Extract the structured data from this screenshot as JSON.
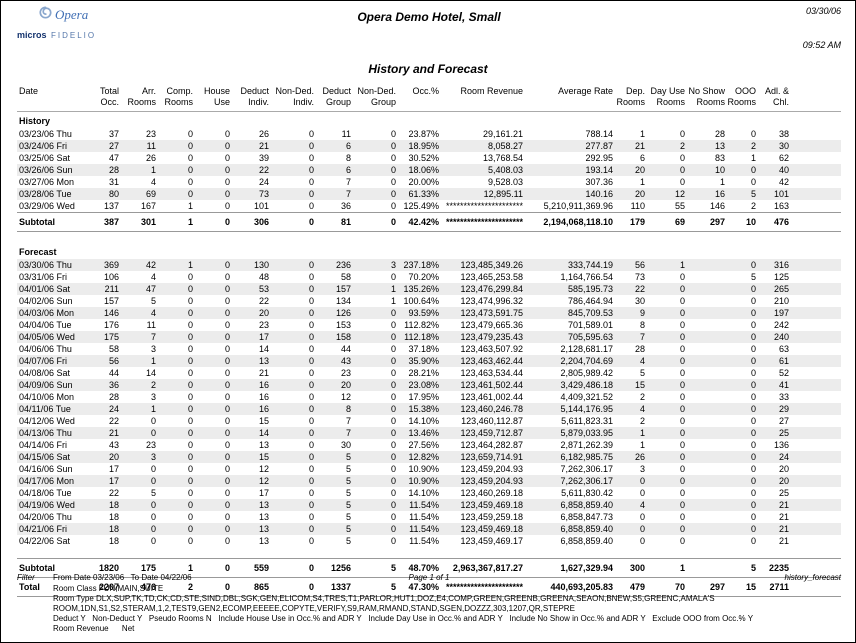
{
  "meta": {
    "logo": {
      "brand": "Opera",
      "sub_brand_1": "micros",
      "sub_brand_2": "FIDELIO"
    },
    "hotel_title": "Opera Demo Hotel, Small",
    "date": "03/30/06",
    "time": "09:52 AM",
    "report_title": "History and Forecast"
  },
  "table": {
    "columns": [
      {
        "lines": [
          "Date"
        ]
      },
      {
        "lines": [
          "Total",
          "Occ."
        ]
      },
      {
        "lines": [
          "Arr.",
          "Rooms"
        ]
      },
      {
        "lines": [
          "Comp.",
          "Rooms"
        ]
      },
      {
        "lines": [
          "House",
          "Use"
        ]
      },
      {
        "lines": [
          "Deduct",
          "Indiv."
        ]
      },
      {
        "lines": [
          "Non-Ded.",
          "Indiv."
        ]
      },
      {
        "lines": [
          "Deduct",
          "Group"
        ]
      },
      {
        "lines": [
          "Non-Ded.",
          "Group"
        ]
      },
      {
        "lines": [
          "Occ.%"
        ]
      },
      {
        "lines": [
          "Room Revenue"
        ]
      },
      {
        "lines": [
          "Average Rate"
        ]
      },
      {
        "lines": [
          "Dep.",
          "Rooms"
        ]
      },
      {
        "lines": [
          "Day Use",
          "Rooms"
        ]
      },
      {
        "lines": [
          "No Show",
          "Rooms"
        ]
      },
      {
        "lines": [
          "OOO",
          "Rooms"
        ]
      },
      {
        "lines": [
          "Adl. &",
          "Chl."
        ]
      }
    ],
    "sections": [
      {
        "label": "History",
        "rows": [
          [
            "03/23/06 Thu",
            "37",
            "23",
            "0",
            "0",
            "26",
            "0",
            "11",
            "0",
            "23.87%",
            "29,161.21",
            "788.14",
            "1",
            "0",
            "28",
            "0",
            "38"
          ],
          [
            "03/24/06 Fri",
            "27",
            "11",
            "0",
            "0",
            "21",
            "0",
            "6",
            "0",
            "18.95%",
            "8,058.27",
            "277.87",
            "21",
            "2",
            "13",
            "2",
            "30"
          ],
          [
            "03/25/06 Sat",
            "47",
            "26",
            "0",
            "0",
            "39",
            "0",
            "8",
            "0",
            "30.52%",
            "13,768.54",
            "292.95",
            "6",
            "0",
            "83",
            "1",
            "62"
          ],
          [
            "03/26/06 Sun",
            "28",
            "1",
            "0",
            "0",
            "22",
            "0",
            "6",
            "0",
            "18.06%",
            "5,408.03",
            "193.14",
            "20",
            "0",
            "10",
            "0",
            "40"
          ],
          [
            "03/27/06 Mon",
            "31",
            "4",
            "0",
            "0",
            "24",
            "0",
            "7",
            "0",
            "20.00%",
            "9,528.03",
            "307.36",
            "1",
            "0",
            "1",
            "0",
            "42"
          ],
          [
            "03/28/06 Tue",
            "80",
            "69",
            "0",
            "0",
            "73",
            "0",
            "7",
            "0",
            "61.33%",
            "12,895.11",
            "140.16",
            "20",
            "12",
            "16",
            "5",
            "101"
          ],
          [
            "03/29/06 Wed",
            "137",
            "167",
            "1",
            "0",
            "101",
            "0",
            "36",
            "0",
            "125.49%",
            "**********************",
            "5,210,911,369.96",
            "110",
            "55",
            "146",
            "2",
            "163"
          ]
        ],
        "subtotal": [
          "Subtotal",
          "387",
          "301",
          "1",
          "0",
          "306",
          "0",
          "81",
          "0",
          "42.42%",
          "**********************",
          "2,194,068,118.10",
          "179",
          "69",
          "297",
          "10",
          "476"
        ]
      },
      {
        "label": "Forecast",
        "rows": [
          [
            "03/30/06 Thu",
            "369",
            "42",
            "1",
            "0",
            "130",
            "0",
            "236",
            "3",
            "237.18%",
            "123,485,349.26",
            "333,744.19",
            "56",
            "1",
            "",
            "0",
            "316"
          ],
          [
            "03/31/06 Fri",
            "106",
            "4",
            "0",
            "0",
            "48",
            "0",
            "58",
            "0",
            "70.20%",
            "123,465,253.58",
            "1,164,766.54",
            "73",
            "0",
            "",
            "5",
            "125"
          ],
          [
            "04/01/06 Sat",
            "211",
            "47",
            "0",
            "0",
            "53",
            "0",
            "157",
            "1",
            "135.26%",
            "123,476,299.84",
            "585,195.73",
            "22",
            "0",
            "",
            "0",
            "265"
          ],
          [
            "04/02/06 Sun",
            "157",
            "5",
            "0",
            "0",
            "22",
            "0",
            "134",
            "1",
            "100.64%",
            "123,474,996.32",
            "786,464.94",
            "30",
            "0",
            "",
            "0",
            "210"
          ],
          [
            "04/03/06 Mon",
            "146",
            "4",
            "0",
            "0",
            "20",
            "0",
            "126",
            "0",
            "93.59%",
            "123,473,591.75",
            "845,709.53",
            "9",
            "0",
            "",
            "0",
            "197"
          ],
          [
            "04/04/06 Tue",
            "176",
            "11",
            "0",
            "0",
            "23",
            "0",
            "153",
            "0",
            "112.82%",
            "123,479,665.36",
            "701,589.01",
            "8",
            "0",
            "",
            "0",
            "242"
          ],
          [
            "04/05/06 Wed",
            "175",
            "7",
            "0",
            "0",
            "17",
            "0",
            "158",
            "0",
            "112.18%",
            "123,479,235.43",
            "705,595.63",
            "7",
            "0",
            "",
            "0",
            "240"
          ],
          [
            "04/06/06 Thu",
            "58",
            "3",
            "0",
            "0",
            "14",
            "0",
            "44",
            "0",
            "37.18%",
            "123,463,507.92",
            "2,128,681.17",
            "28",
            "0",
            "",
            "0",
            "63"
          ],
          [
            "04/07/06 Fri",
            "56",
            "1",
            "0",
            "0",
            "13",
            "0",
            "43",
            "0",
            "35.90%",
            "123,463,462.44",
            "2,204,704.69",
            "4",
            "0",
            "",
            "0",
            "61"
          ],
          [
            "04/08/06 Sat",
            "44",
            "14",
            "0",
            "0",
            "21",
            "0",
            "23",
            "0",
            "28.21%",
            "123,463,534.44",
            "2,805,989.42",
            "5",
            "0",
            "",
            "0",
            "52"
          ],
          [
            "04/09/06 Sun",
            "36",
            "2",
            "0",
            "0",
            "16",
            "0",
            "20",
            "0",
            "23.08%",
            "123,461,502.44",
            "3,429,486.18",
            "15",
            "0",
            "",
            "0",
            "41"
          ],
          [
            "04/10/06 Mon",
            "28",
            "3",
            "0",
            "0",
            "16",
            "0",
            "12",
            "0",
            "17.95%",
            "123,461,002.44",
            "4,409,321.52",
            "2",
            "0",
            "",
            "0",
            "33"
          ],
          [
            "04/11/06 Tue",
            "24",
            "1",
            "0",
            "0",
            "16",
            "0",
            "8",
            "0",
            "15.38%",
            "123,460,246.78",
            "5,144,176.95",
            "4",
            "0",
            "",
            "0",
            "29"
          ],
          [
            "04/12/06 Wed",
            "22",
            "0",
            "0",
            "0",
            "15",
            "0",
            "7",
            "0",
            "14.10%",
            "123,460,112.87",
            "5,611,823.31",
            "2",
            "0",
            "",
            "0",
            "27"
          ],
          [
            "04/13/06 Thu",
            "21",
            "0",
            "0",
            "0",
            "14",
            "0",
            "7",
            "0",
            "13.46%",
            "123,459,712.87",
            "5,879,033.95",
            "1",
            "0",
            "",
            "0",
            "25"
          ],
          [
            "04/14/06 Fri",
            "43",
            "23",
            "0",
            "0",
            "13",
            "0",
            "30",
            "0",
            "27.56%",
            "123,464,282.87",
            "2,871,262.39",
            "1",
            "0",
            "",
            "0",
            "136"
          ],
          [
            "04/15/06 Sat",
            "20",
            "3",
            "0",
            "0",
            "15",
            "0",
            "5",
            "0",
            "12.82%",
            "123,659,714.91",
            "6,182,985.75",
            "26",
            "0",
            "",
            "0",
            "24"
          ],
          [
            "04/16/06 Sun",
            "17",
            "0",
            "0",
            "0",
            "12",
            "0",
            "5",
            "0",
            "10.90%",
            "123,459,204.93",
            "7,262,306.17",
            "3",
            "0",
            "",
            "0",
            "20"
          ],
          [
            "04/17/06 Mon",
            "17",
            "0",
            "0",
            "0",
            "12",
            "0",
            "5",
            "0",
            "10.90%",
            "123,459,204.93",
            "7,262,306.17",
            "0",
            "0",
            "",
            "0",
            "20"
          ],
          [
            "04/18/06 Tue",
            "22",
            "5",
            "0",
            "0",
            "17",
            "0",
            "5",
            "0",
            "14.10%",
            "123,460,269.18",
            "5,611,830.42",
            "0",
            "0",
            "",
            "0",
            "25"
          ],
          [
            "04/19/06 Wed",
            "18",
            "0",
            "0",
            "0",
            "13",
            "0",
            "5",
            "0",
            "11.54%",
            "123,459,469.18",
            "6,858,859.40",
            "4",
            "0",
            "",
            "0",
            "21"
          ],
          [
            "04/20/06 Thu",
            "18",
            "0",
            "0",
            "0",
            "13",
            "0",
            "5",
            "0",
            "11.54%",
            "123,459,259.18",
            "6,858,847.73",
            "0",
            "0",
            "",
            "0",
            "21"
          ],
          [
            "04/21/06 Fri",
            "18",
            "0",
            "0",
            "0",
            "13",
            "0",
            "5",
            "0",
            "11.54%",
            "123,459,469.18",
            "6,858,859.40",
            "0",
            "0",
            "",
            "0",
            "21"
          ],
          [
            "04/22/06 Sat",
            "18",
            "0",
            "0",
            "0",
            "13",
            "0",
            "5",
            "0",
            "11.54%",
            "123,459,469.17",
            "6,858,859.40",
            "0",
            "0",
            "",
            "0",
            "21"
          ]
        ],
        "subtotal": [
          "Subtotal",
          "1820",
          "175",
          "1",
          "0",
          "559",
          "0",
          "1256",
          "5",
          "48.70%",
          "2,963,367,817.27",
          "1,627,329.94",
          "300",
          "1",
          "",
          "5",
          "2235"
        ]
      }
    ],
    "total": [
      "Total",
      "2207",
      "476",
      "2",
      "0",
      "865",
      "0",
      "1337",
      "5",
      "47.30%",
      "**********************",
      "440,693,205.83",
      "479",
      "70",
      "297",
      "15",
      "2711"
    ]
  },
  "footer": {
    "filter_label": "Filter",
    "dates": "From Date 03/23/06   To Date 04/22/06",
    "page": "Page 1 of 1",
    "file_name": "history_forecast",
    "room_class": "Room Class FUN,MAIN,SUITE",
    "room_type_line1": "Room Type DLX,SUP,TK,TD,CK,CD,STE,SIND,DBL,SGK,GEN,ELICOM,S4,TRES,T1,PARLOR,HUT1,DOZ,E4,COMP,GREEN,GREENB,GREENA,SEAON,BNEW,S5,GREENC,AMALA'S",
    "room_type_line2": "ROOM,1DN,S1,S2,STERAM,1,2,TEST9,GEN2,ECOMP,EEEEE,COPYTE,VERIFY,S9,RAM,RMAND,STAND,SGEN,DOZZZ,303,1207,QR,STEPRE",
    "options_line": "Deduct Y   Non-Deduct Y   Pseudo Rooms N   Include House Use in Occ.% and ADR Y   Include Day Use in Occ.% and ADR Y   Include No Show in Occ.% and ADR Y   Exclude OOO from Occ.% Y",
    "revenue_line": "Room Revenue      Net"
  },
  "colors": {
    "stripe": "#ececec",
    "rule": "#999999",
    "logo_blue": "#3f6eb4",
    "logo_navy": "#14336e"
  }
}
